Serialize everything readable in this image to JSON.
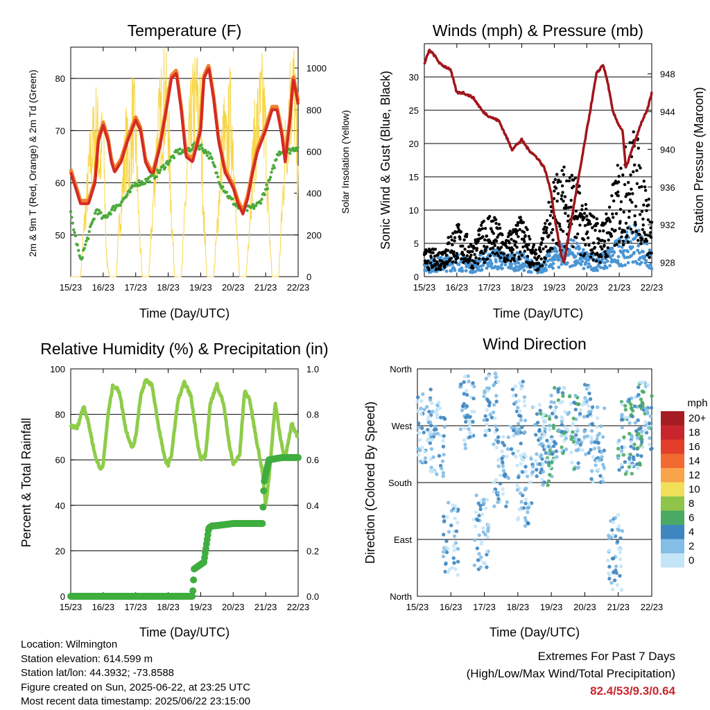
{
  "chart_data": [
    {
      "type": "line",
      "title": "Temperature (F)",
      "xlabel": "Time (Day/UTC)",
      "ylabel": "2m & 9m T (Red, Orange) & 2m Td (Green)",
      "ylabel_right": "Solar Insolation (Yellow)",
      "x_ticks": [
        "15/23",
        "16/23",
        "17/23",
        "18/23",
        "19/23",
        "20/23",
        "21/23",
        "22/23"
      ],
      "y_ticks": [
        50,
        60,
        70,
        80
      ],
      "ylim": [
        42,
        86
      ],
      "y2_ticks": [
        0,
        200,
        400,
        600,
        800,
        1000
      ],
      "y2lim": [
        0,
        1100
      ],
      "grid": "horizontal",
      "colors": {
        "t2m": "#d42a25",
        "t9m": "#f07f2a",
        "td": "#4caa3c",
        "solar": "#f7d74a"
      },
      "series": [
        {
          "name": "2m T",
          "x": [
            0,
            0.3,
            0.55,
            0.75,
            0.85,
            1.0,
            1.15,
            1.25,
            1.35,
            1.55,
            1.75,
            2.0,
            2.15,
            2.3,
            2.45,
            2.55,
            2.75,
            3.0,
            3.1,
            3.25,
            3.4,
            3.55,
            3.75,
            4.0,
            4.1,
            4.25,
            4.4,
            4.55,
            4.75,
            5.0,
            5.15,
            5.3,
            5.45,
            5.6,
            5.75,
            6.0,
            6.2,
            6.35,
            6.5,
            6.6,
            6.75,
            6.85,
            7.0
          ],
          "values": [
            62,
            56,
            56,
            60,
            68,
            71,
            68,
            64,
            62,
            64,
            68,
            72,
            70,
            64,
            62,
            62,
            67,
            76,
            80,
            81,
            74,
            65,
            64,
            70,
            80,
            82,
            76,
            68,
            62,
            59,
            56,
            54,
            57,
            62,
            66,
            70,
            74,
            74,
            69,
            64,
            72,
            80,
            75
          ]
        },
        {
          "name": "2m Td",
          "x": [
            0,
            0.3,
            0.55,
            0.8,
            1.0,
            1.3,
            1.5,
            1.8,
            2.0,
            2.2,
            2.5,
            2.7,
            3.0,
            3.3,
            3.5,
            3.8,
            4.0,
            4.3,
            4.6,
            4.9,
            5.2,
            5.5,
            5.8,
            6.1,
            6.4,
            6.7,
            7.0
          ],
          "values": [
            54,
            45,
            50,
            55,
            53,
            55,
            56,
            58,
            60,
            60,
            61,
            62,
            64,
            66,
            66,
            67,
            67,
            65,
            60,
            57,
            55,
            55,
            56,
            60,
            66,
            66,
            67
          ]
        },
        {
          "name": "Solar Insolation",
          "x": [
            0,
            0.1,
            0.2,
            0.3,
            0.4,
            0.5,
            0.6,
            0.7,
            0.8,
            0.9,
            1.0,
            1.1,
            1.2,
            1.3,
            1.4,
            1.5,
            1.6,
            1.7,
            1.8,
            1.9,
            2.0,
            2.1,
            2.2,
            2.3,
            2.4,
            2.5,
            2.6,
            2.7,
            2.8,
            2.9,
            3.0,
            3.1,
            3.2,
            3.3,
            3.4,
            3.5,
            3.6,
            3.7,
            3.8,
            3.9,
            4.0,
            4.1,
            4.2,
            4.3,
            4.4,
            4.5,
            4.6,
            4.7,
            4.8,
            4.9,
            5.0,
            5.1,
            5.2,
            5.3,
            5.4,
            5.5,
            5.6,
            5.7,
            5.8,
            5.9,
            6.0,
            6.1,
            6.2,
            6.3,
            6.4,
            6.5,
            6.6,
            6.7,
            6.8,
            6.9,
            7.0
          ],
          "values": [
            0,
            0,
            0,
            0,
            250,
            450,
            650,
            750,
            850,
            620,
            820,
            100,
            0,
            0,
            0,
            300,
            500,
            750,
            600,
            900,
            780,
            300,
            0,
            0,
            0,
            300,
            620,
            800,
            930,
            1000,
            850,
            350,
            0,
            0,
            0,
            300,
            650,
            850,
            950,
            980,
            870,
            320,
            0,
            0,
            0,
            250,
            550,
            800,
            700,
            900,
            780,
            250,
            0,
            0,
            0,
            300,
            650,
            800,
            900,
            950,
            800,
            280,
            0,
            0,
            0,
            350,
            700,
            900,
            1050,
            1000,
            500
          ]
        }
      ]
    },
    {
      "type": "scatter",
      "title": "Winds (mph) & Pressure (mb)",
      "xlabel": "Time (Day/UTC)",
      "ylabel": "Sonic Wind & Gust (Blue, Black)",
      "ylabel_right": "Station Pressure (Maroon)",
      "x_ticks": [
        "15/23",
        "16/23",
        "17/23",
        "18/23",
        "19/23",
        "20/23",
        "21/23",
        "22/23"
      ],
      "y_ticks": [
        0,
        5,
        10,
        15,
        20,
        25,
        30
      ],
      "ylim": [
        0,
        35
      ],
      "y2_ticks": [
        928,
        932,
        936,
        940,
        944,
        948
      ],
      "y2lim": [
        926.5,
        951.2
      ],
      "grid": "horizontal",
      "colors": {
        "wind": "#4a95d4",
        "gust": "#000000",
        "pressure": "#a0161c"
      },
      "series": [
        {
          "name": "Station Pressure",
          "x": [
            0,
            0.15,
            0.3,
            0.5,
            0.8,
            1.0,
            1.2,
            1.5,
            1.8,
            2.0,
            2.3,
            2.5,
            2.7,
            3.0,
            3.2,
            3.5,
            3.7,
            3.9,
            4.0,
            4.1,
            4.2,
            4.3,
            4.4,
            4.55,
            4.7,
            4.9,
            5.1,
            5.3,
            5.5,
            5.65,
            5.8,
            6.0,
            6.1,
            6.2,
            6.3,
            6.5,
            6.7,
            6.85,
            7.0
          ],
          "values": [
            949,
            950.5,
            950,
            949,
            948.5,
            946,
            946,
            945.5,
            944,
            943.5,
            943,
            941.5,
            940,
            941,
            940,
            939,
            938,
            935.5,
            933,
            931,
            929,
            928,
            930,
            933,
            936,
            940,
            944,
            948,
            949,
            947,
            944,
            942.5,
            942,
            938,
            939,
            941,
            943,
            944,
            946
          ]
        },
        {
          "name": "Gust envelope",
          "x": [
            0,
            0.5,
            1.0,
            1.5,
            2.0,
            2.5,
            3.0,
            3.5,
            4.0,
            4.5,
            5.0,
            5.5,
            6.0,
            6.5,
            7.0
          ],
          "values": [
            4,
            4,
            8,
            5,
            10,
            6,
            9,
            3,
            15,
            17,
            10,
            8,
            17,
            22,
            9
          ]
        },
        {
          "name": "Wind envelope",
          "x": [
            0,
            0.5,
            1.0,
            1.5,
            2.0,
            2.5,
            3.0,
            3.5,
            4.0,
            4.5,
            5.0,
            5.5,
            6.0,
            6.5,
            7.0
          ],
          "values": [
            2,
            2.5,
            3,
            2,
            4,
            3,
            3,
            1.5,
            4,
            5,
            3,
            3,
            5,
            7,
            3
          ]
        }
      ]
    },
    {
      "type": "line",
      "title": "Relative Humidity (%) & Precipitation (in)",
      "xlabel": "Time (Day/UTC)",
      "ylabel": "Percent & Total Rainfall",
      "x_ticks": [
        "15/23",
        "16/23",
        "17/23",
        "18/23",
        "19/23",
        "20/23",
        "21/23",
        "22/23"
      ],
      "y_ticks": [
        0,
        20,
        40,
        60,
        80,
        100
      ],
      "ylim": [
        0,
        100
      ],
      "y2_ticks": [
        "0.0",
        "0.2",
        "0.4",
        "0.6",
        "0.8",
        "1.0"
      ],
      "y2lim": [
        0,
        1.0
      ],
      "grid": "horizontal",
      "colors": {
        "rh": "#8fcc4a",
        "precip": "#3fad3f"
      },
      "series": [
        {
          "name": "Relative Humidity",
          "x": [
            0,
            0.2,
            0.4,
            0.55,
            0.75,
            0.9,
            1.0,
            1.15,
            1.3,
            1.5,
            1.7,
            1.9,
            2.0,
            2.15,
            2.3,
            2.5,
            2.7,
            2.9,
            3.0,
            3.1,
            3.3,
            3.5,
            3.7,
            3.9,
            4.0,
            4.15,
            4.3,
            4.5,
            4.7,
            4.9,
            5.0,
            5.2,
            5.35,
            5.5,
            5.7,
            5.9,
            6.0,
            6.1,
            6.3,
            6.45,
            6.6,
            6.8,
            7.0
          ],
          "values": [
            75,
            74,
            84,
            76,
            62,
            56,
            58,
            80,
            93,
            90,
            73,
            65,
            70,
            88,
            95,
            93,
            75,
            60,
            58,
            62,
            86,
            94,
            88,
            68,
            60,
            62,
            85,
            93,
            85,
            65,
            58,
            62,
            90,
            87,
            70,
            55,
            40,
            52,
            85,
            70,
            60,
            76,
            70
          ]
        },
        {
          "name": "Total Precipitation",
          "x": [
            0,
            3.75,
            3.8,
            3.9,
            4.0,
            4.1,
            4.2,
            4.25,
            4.35,
            4.45,
            5.0,
            5.5,
            5.9,
            5.95,
            6.1,
            6.5,
            7.0
          ],
          "values": [
            0,
            0,
            0.12,
            0.13,
            0.14,
            0.15,
            0.25,
            0.3,
            0.31,
            0.31,
            0.32,
            0.32,
            0.32,
            0.5,
            0.6,
            0.61,
            0.61
          ]
        }
      ]
    },
    {
      "type": "scatter",
      "title": "Wind Direction",
      "xlabel": "Time (Day/UTC)",
      "ylabel": "Direction (Colored By Speed)",
      "x_ticks": [
        "15/23",
        "16/23",
        "17/23",
        "18/23",
        "19/23",
        "20/23",
        "21/23",
        "22/23"
      ],
      "y_ticks": [
        "North",
        "East",
        "South",
        "West",
        "North"
      ],
      "ylim": [
        0,
        360
      ],
      "grid": "horizontal",
      "legend_title": "mph",
      "legend": [
        {
          "label": "20+",
          "color": "#a51d22"
        },
        {
          "label": "18",
          "color": "#c8262c"
        },
        {
          "label": "16",
          "color": "#e23e2a"
        },
        {
          "label": "14",
          "color": "#f06a32"
        },
        {
          "label": "12",
          "color": "#f9a34b"
        },
        {
          "label": "10",
          "color": "#efdf59"
        },
        {
          "label": "8",
          "color": "#8ec44a"
        },
        {
          "label": "6",
          "color": "#4aaa63"
        },
        {
          "label": "4",
          "color": "#3f86c0"
        },
        {
          "label": "2",
          "color": "#84bde6"
        },
        {
          "label": "0",
          "color": "#c4e5f7"
        }
      ],
      "series": [
        {
          "name": "Direction clusters (day, degrees, mph)",
          "x": [
            0.2,
            0.6,
            1.0,
            1.5,
            1.9,
            2.2,
            2.5,
            3.0,
            3.2,
            3.6,
            3.9,
            4.2,
            4.6,
            5.0,
            5.4,
            5.9,
            6.2,
            6.5,
            6.8
          ],
          "values": [
            270,
            250,
            90,
            290,
            100,
            300,
            200,
            280,
            170,
            250,
            230,
            270,
            260,
            280,
            240,
            70,
            250,
            260,
            280
          ]
        }
      ]
    }
  ],
  "info": {
    "location": "Location: Wilmington",
    "elevation": "Station elevation: 614.599 m",
    "latlon": "Station lat/lon: 44.3932; -73.8588",
    "created": "Figure created on Sun, 2025-06-22, at 23:25 UTC",
    "recent": "Most recent data timestamp: 2025/06/22 23:15:00"
  },
  "extremes": {
    "line1": "Extremes For Past 7 Days",
    "line2": "(High/Low/Max Wind/Total Precipitation)",
    "values": "82.4/53/9.3/0.64"
  }
}
